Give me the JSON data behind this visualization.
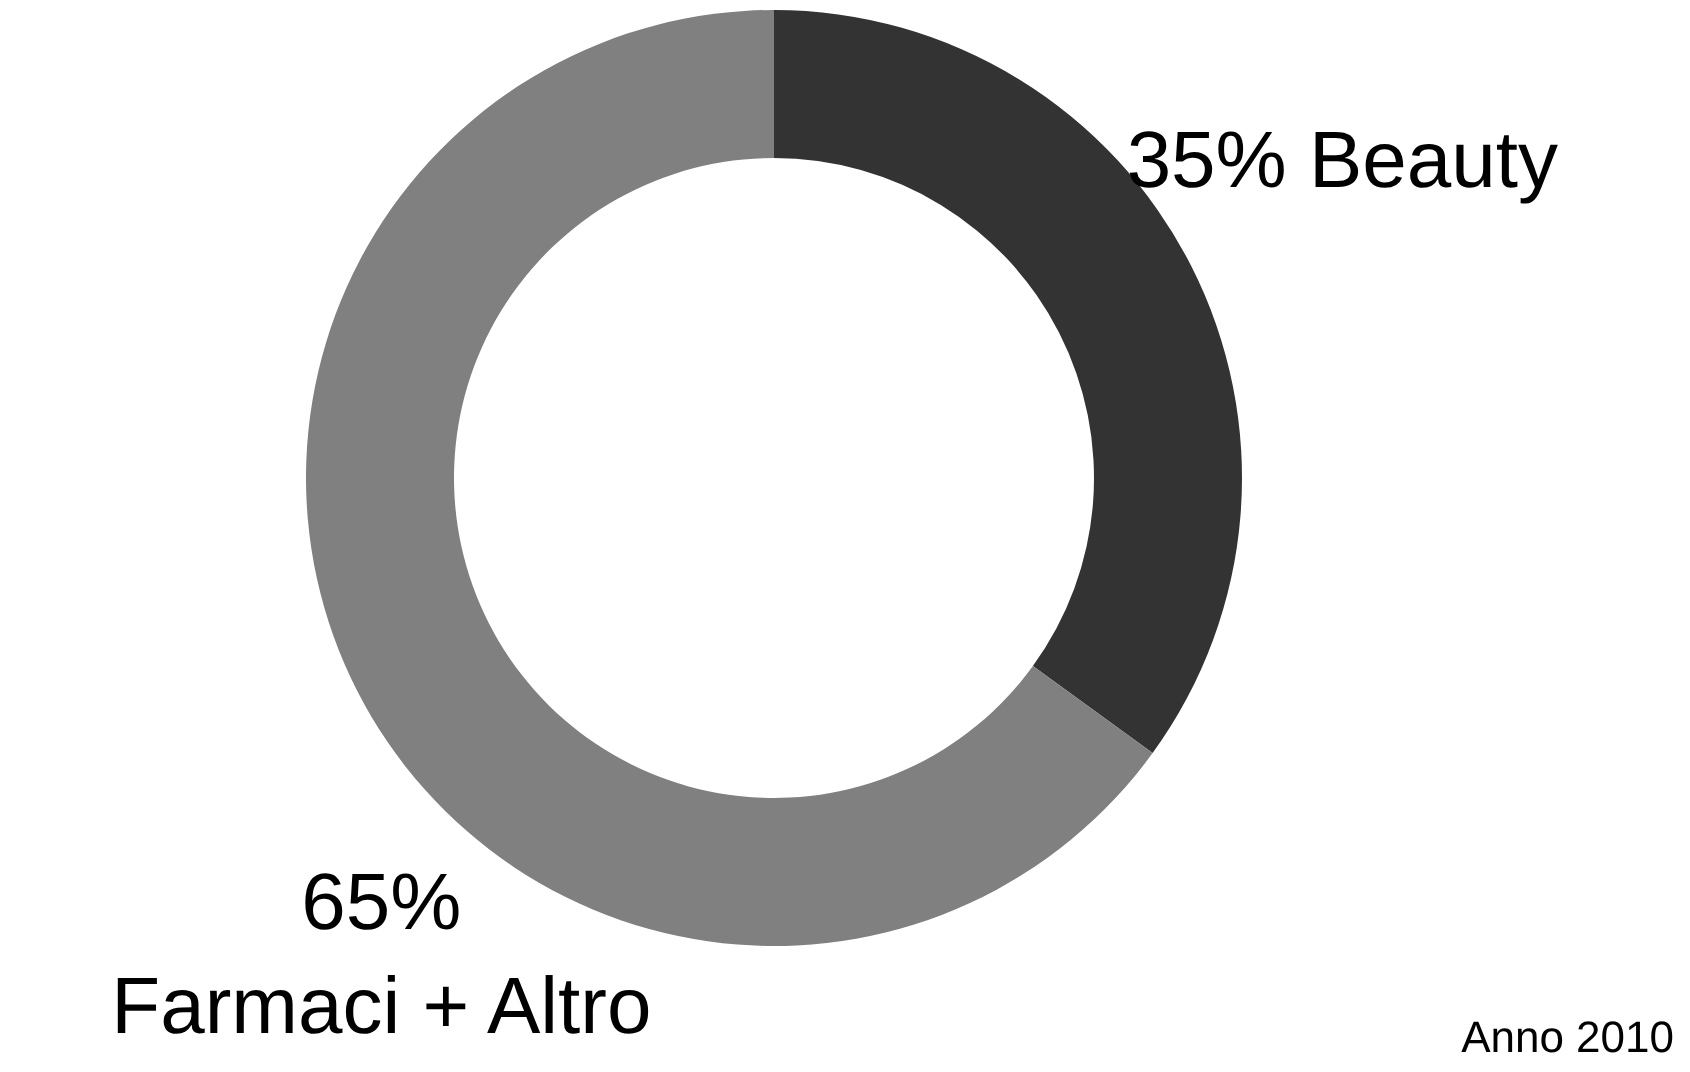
{
  "chart_data": {
    "type": "donut",
    "categories": [
      "Beauty",
      "Farmaci + Altro"
    ],
    "values": [
      35,
      65
    ],
    "value_labels": [
      "35%",
      "65%"
    ],
    "colors": [
      "#333333",
      "#808080"
    ],
    "annotations": [
      "Anno 2010"
    ]
  }
}
